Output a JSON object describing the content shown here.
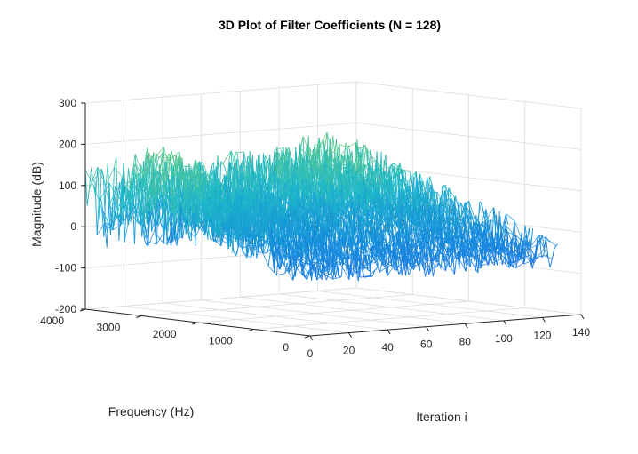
{
  "chart_data": {
    "type": "surface-mesh",
    "title": "3D Plot of Filter Coefficients (N = 128)",
    "xlabel": "Iteration i",
    "ylabel": "Frequency (Hz)",
    "zlabel": "Magnitude (dB)",
    "xlim": [
      0,
      140
    ],
    "ylim": [
      0,
      4000
    ],
    "zlim": [
      -200,
      300
    ],
    "xticks": [
      "0",
      "20",
      "40",
      "60",
      "80",
      "100",
      "120",
      "140"
    ],
    "yticks": [
      "0",
      "1000",
      "2000",
      "3000",
      "4000"
    ],
    "zticks": [
      "-200",
      "-100",
      "0",
      "100",
      "200",
      "300"
    ],
    "grid": true,
    "colormap": "parula",
    "colors": {
      "low": "#2d6ff0",
      "mid": "#1fb2d4",
      "high": "#e6d23a",
      "axis": "#262626",
      "grid": "#dcdcdc"
    },
    "n_iterations": 128,
    "n_frequencies": 28,
    "magnitude_range_observed": [
      -170,
      290
    ]
  }
}
